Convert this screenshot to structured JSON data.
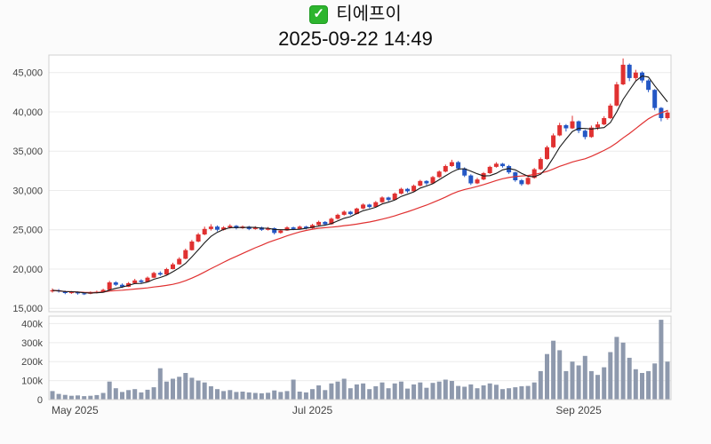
{
  "header": {
    "checkbox_glyph": "✓",
    "title": "티에프이",
    "datetime": "2025-09-22 14:49"
  },
  "colors": {
    "up": "#e03131",
    "down": "#2457c5",
    "ma_fast": "#1a1a1a",
    "ma_slow": "#e03131",
    "volume": "#8e99ad",
    "grid": "#ececec",
    "frame": "#d0d0d0",
    "axis_text": "#444444",
    "checkbox_green": "#2db52e"
  },
  "chart_data": {
    "type": "candlestick+volume",
    "title": "티에프이",
    "subtitle": "2025-09-22 14:49",
    "x_tick_labels": [
      "May 2025",
      "Jul 2025",
      "Sep 2025"
    ],
    "x_tick_indices": [
      0,
      41,
      83
    ],
    "price_axis": {
      "render_min": 14800,
      "render_max": 47000,
      "ticks": [
        15000,
        20000,
        25000,
        30000,
        35000,
        40000,
        45000
      ],
      "tick_labels": [
        "15,000",
        "20,000",
        "25,000",
        "30,000",
        "35,000",
        "40,000",
        "45,000"
      ]
    },
    "volume_axis": {
      "render_max": 430000,
      "ticks": [
        0,
        100000,
        200000,
        300000,
        400000
      ],
      "tick_labels": [
        "0",
        "100k",
        "200k",
        "300k",
        "400k"
      ]
    },
    "overlays": [
      {
        "type": "sma",
        "window": 20,
        "color": "#e03131",
        "width": 1.2
      },
      {
        "type": "sma",
        "window": 5,
        "color": "#1a1a1a",
        "width": 1.1
      }
    ],
    "candles_format": [
      "open",
      "high",
      "low",
      "close",
      "volume"
    ],
    "candles": [
      [
        17150,
        17550,
        17000,
        17300,
        45000
      ],
      [
        17300,
        17450,
        17000,
        17150,
        30000
      ],
      [
        17150,
        17250,
        16800,
        16950,
        25000
      ],
      [
        16950,
        17200,
        16850,
        17050,
        20000
      ],
      [
        17050,
        17150,
        16750,
        16900,
        22000
      ],
      [
        16900,
        17050,
        16700,
        16850,
        18000
      ],
      [
        16850,
        17150,
        16800,
        17000,
        20000
      ],
      [
        17000,
        17250,
        16900,
        17100,
        24000
      ],
      [
        17100,
        17500,
        17050,
        17350,
        35000
      ],
      [
        17350,
        18500,
        17300,
        18300,
        95000
      ],
      [
        18300,
        18450,
        17850,
        18000,
        60000
      ],
      [
        18000,
        18150,
        17600,
        17750,
        40000
      ],
      [
        17750,
        18350,
        17700,
        18200,
        50000
      ],
      [
        18200,
        18750,
        18100,
        18550,
        55000
      ],
      [
        18550,
        18700,
        18200,
        18350,
        38000
      ],
      [
        18350,
        19050,
        18300,
        18900,
        52000
      ],
      [
        18900,
        19650,
        18850,
        19500,
        65000
      ],
      [
        19500,
        19700,
        19150,
        19300,
        165000
      ],
      [
        19300,
        20150,
        19250,
        20000,
        95000
      ],
      [
        20000,
        20800,
        19950,
        20600,
        110000
      ],
      [
        20600,
        21500,
        20550,
        21300,
        120000
      ],
      [
        21300,
        22600,
        21250,
        22400,
        140000
      ],
      [
        22400,
        23700,
        22350,
        23500,
        115000
      ],
      [
        23500,
        24600,
        23400,
        24400,
        100000
      ],
      [
        24400,
        25400,
        24300,
        25100,
        90000
      ],
      [
        25100,
        25700,
        24900,
        25400,
        70000
      ],
      [
        25400,
        25550,
        24800,
        25000,
        55000
      ],
      [
        25000,
        25450,
        24900,
        25300,
        45000
      ],
      [
        25300,
        25700,
        25150,
        25500,
        50000
      ],
      [
        25500,
        25600,
        25050,
        25200,
        40000
      ],
      [
        25200,
        25550,
        25100,
        25400,
        42000
      ],
      [
        25400,
        25500,
        24950,
        25100,
        38000
      ],
      [
        25100,
        25450,
        25000,
        25300,
        35000
      ],
      [
        25300,
        25400,
        24850,
        25000,
        33000
      ],
      [
        25000,
        25350,
        24900,
        25200,
        36000
      ],
      [
        25200,
        25300,
        24400,
        24600,
        48000
      ],
      [
        24600,
        25050,
        24500,
        24900,
        40000
      ],
      [
        24900,
        25450,
        24850,
        25300,
        45000
      ],
      [
        25300,
        25400,
        24950,
        25100,
        105000
      ],
      [
        25100,
        25550,
        25050,
        25400,
        42000
      ],
      [
        25400,
        25500,
        25050,
        25200,
        38000
      ],
      [
        25200,
        25750,
        25150,
        25600,
        55000
      ],
      [
        25600,
        26150,
        25500,
        26000,
        75000
      ],
      [
        26000,
        26100,
        25550,
        25700,
        50000
      ],
      [
        25700,
        26550,
        25650,
        26400,
        85000
      ],
      [
        26400,
        27050,
        26300,
        26900,
        95000
      ],
      [
        26900,
        27450,
        26800,
        27300,
        110000
      ],
      [
        27300,
        27400,
        26850,
        27000,
        60000
      ],
      [
        27000,
        27800,
        26950,
        27700,
        80000
      ],
      [
        27700,
        28350,
        27600,
        28200,
        85000
      ],
      [
        28200,
        28300,
        27750,
        27900,
        55000
      ],
      [
        27900,
        28650,
        27850,
        28500,
        70000
      ],
      [
        28500,
        29250,
        28400,
        29100,
        90000
      ],
      [
        29100,
        29200,
        28600,
        28800,
        60000
      ],
      [
        28800,
        29750,
        28750,
        29600,
        85000
      ],
      [
        29600,
        30350,
        29500,
        30200,
        95000
      ],
      [
        30200,
        30300,
        29700,
        29900,
        58000
      ],
      [
        29900,
        30750,
        29850,
        30600,
        80000
      ],
      [
        30600,
        31350,
        30500,
        31200,
        90000
      ],
      [
        31200,
        31300,
        30650,
        30900,
        62000
      ],
      [
        30900,
        31850,
        30850,
        31700,
        88000
      ],
      [
        31700,
        32550,
        31600,
        32400,
        95000
      ],
      [
        32400,
        33300,
        32300,
        33100,
        105000
      ],
      [
        33100,
        33900,
        33000,
        33600,
        98000
      ],
      [
        33600,
        33750,
        32600,
        32800,
        72000
      ],
      [
        32800,
        32950,
        31700,
        31900,
        68000
      ],
      [
        31900,
        32050,
        30700,
        30900,
        80000
      ],
      [
        30900,
        31600,
        30800,
        31400,
        60000
      ],
      [
        31400,
        32350,
        31300,
        32200,
        75000
      ],
      [
        32200,
        33150,
        32100,
        33000,
        85000
      ],
      [
        33000,
        33600,
        32900,
        33400,
        78000
      ],
      [
        33400,
        33500,
        32900,
        33100,
        55000
      ],
      [
        33100,
        33250,
        32100,
        32300,
        60000
      ],
      [
        32300,
        32400,
        31100,
        31300,
        65000
      ],
      [
        31300,
        31450,
        30600,
        30800,
        70000
      ],
      [
        30800,
        31750,
        30700,
        31600,
        72000
      ],
      [
        31600,
        32850,
        31500,
        32700,
        90000
      ],
      [
        32700,
        34200,
        32600,
        34000,
        150000
      ],
      [
        34000,
        35700,
        33900,
        35500,
        240000
      ],
      [
        35500,
        37250,
        35400,
        37000,
        310000
      ],
      [
        37000,
        38600,
        36900,
        38300,
        260000
      ],
      [
        38300,
        38450,
        37500,
        37900,
        150000
      ],
      [
        37900,
        39500,
        37800,
        38800,
        200000
      ],
      [
        38800,
        38900,
        37300,
        37600,
        180000
      ],
      [
        37600,
        37750,
        36500,
        36800,
        230000
      ],
      [
        36800,
        38250,
        36700,
        38000,
        150000
      ],
      [
        38000,
        38750,
        37700,
        38400,
        130000
      ],
      [
        38400,
        39450,
        38300,
        39200,
        170000
      ],
      [
        39200,
        41050,
        39100,
        40800,
        250000
      ],
      [
        40800,
        43800,
        40700,
        43500,
        330000
      ],
      [
        43500,
        46800,
        43400,
        46000,
        300000
      ],
      [
        46000,
        46150,
        43900,
        44300,
        220000
      ],
      [
        44300,
        45350,
        44000,
        45000,
        160000
      ],
      [
        45000,
        45150,
        43700,
        44000,
        140000
      ],
      [
        44000,
        44150,
        42500,
        42800,
        150000
      ],
      [
        42800,
        42900,
        40200,
        40500,
        190000
      ],
      [
        40500,
        40600,
        38800,
        39200,
        420000
      ],
      [
        39200,
        40250,
        39000,
        39900,
        200000
      ]
    ]
  }
}
